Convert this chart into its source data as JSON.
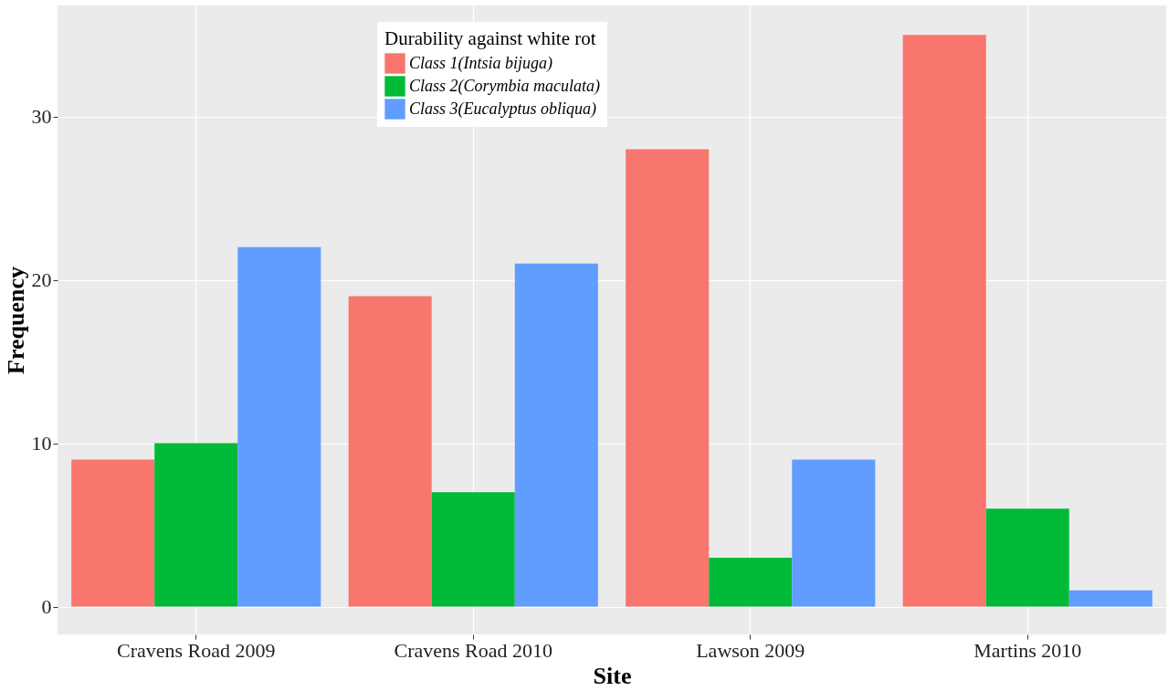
{
  "chart_data": {
    "type": "bar",
    "xlabel": "Site",
    "ylabel": "Frequency",
    "legend_title": "Durability against white rot",
    "categories": [
      "Cravens Road 2009",
      "Cravens Road 2010",
      "Lawson 2009",
      "Martins 2010"
    ],
    "series": [
      {
        "name": "Class 1(Intsia bijuga)",
        "color": "#f8766d",
        "values": [
          9,
          19,
          28,
          35
        ]
      },
      {
        "name": "Class 2(Corymbia maculata)",
        "color": "#00ba38",
        "values": [
          10,
          7,
          3,
          6
        ]
      },
      {
        "name": "Class 3(Eucalyptus obliqua)",
        "color": "#619cff",
        "values": [
          22,
          21,
          9,
          1
        ]
      }
    ],
    "ylim": [
      -1.7,
      36.8
    ],
    "yticks": [
      0,
      10,
      20,
      30
    ],
    "grid": true,
    "legend": "top"
  }
}
